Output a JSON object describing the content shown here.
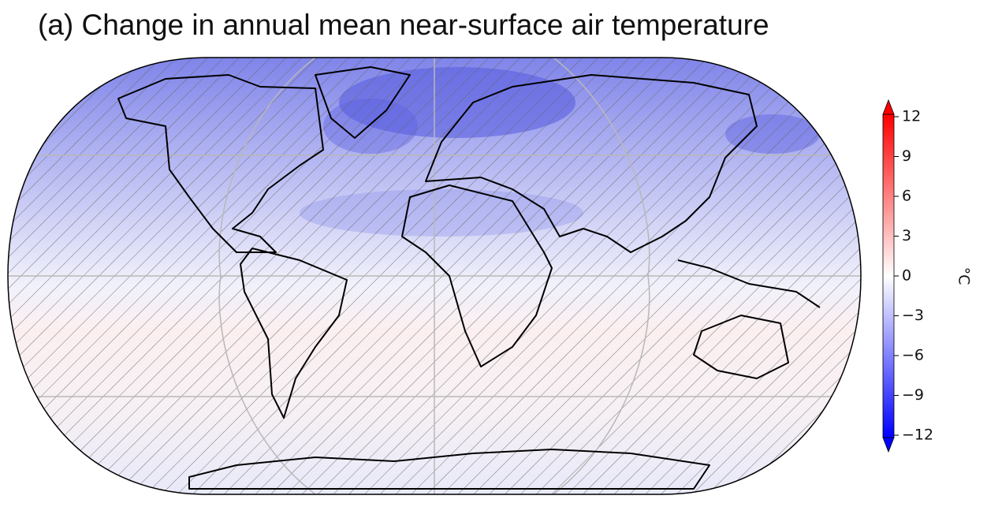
{
  "title": "(a) Change in annual mean near-surface air temperature",
  "colorbar": {
    "label": "°C",
    "lim": [
      -12,
      12
    ],
    "ticks": [
      12,
      9,
      6,
      3,
      0,
      {
        "value": -3,
        "label": "−3"
      },
      {
        "value": -6,
        "label": "−6"
      },
      {
        "value": -9,
        "label": "−9"
      },
      {
        "value": -12,
        "label": "−12"
      }
    ]
  }
}
